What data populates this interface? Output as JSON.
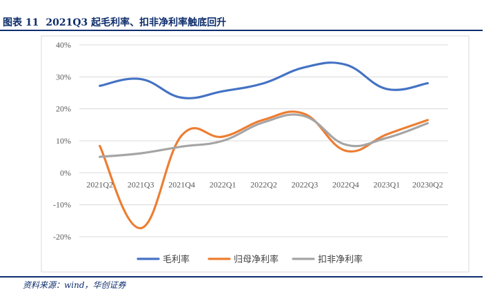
{
  "figure": {
    "number_label": "图表 11",
    "title": "2021Q3 起毛利率、扣非净利率触底回升",
    "source": "资料来源：wind，华创证券"
  },
  "chart_data": {
    "type": "line",
    "title": "2021Q3 起毛利率、扣非净利率触底回升",
    "xlabel": "",
    "ylabel": "",
    "categories": [
      "2021Q2",
      "2021Q3",
      "2021Q4",
      "2022Q1",
      "2022Q2",
      "2022Q3",
      "2022Q4",
      "2023Q1",
      "20230Q2"
    ],
    "ylim": [
      -20,
      40
    ],
    "yticks": [
      -20,
      -10,
      0,
      10,
      20,
      30,
      40
    ],
    "ytick_labels": [
      "-20%",
      "-10%",
      "0%",
      "10%",
      "20%",
      "30%",
      "40%"
    ],
    "unit": "%",
    "smooth": true,
    "grid": true,
    "legend_position": "bottom",
    "series": [
      {
        "name": "毛利率",
        "color": "#4472c4",
        "values": [
          27.2,
          29.3,
          23.5,
          25.5,
          28.0,
          33.0,
          33.8,
          26.2,
          28.0
        ]
      },
      {
        "name": "归母净利率",
        "color": "#ed7d31",
        "values": [
          8.4,
          -17.3,
          11.7,
          11.3,
          16.6,
          18.4,
          6.9,
          12.0,
          16.5
        ]
      },
      {
        "name": "扣非净利率",
        "color": "#a5a5a5",
        "values": [
          5.0,
          6.1,
          8.2,
          10.0,
          15.8,
          17.7,
          8.8,
          10.9,
          15.5
        ]
      }
    ]
  }
}
